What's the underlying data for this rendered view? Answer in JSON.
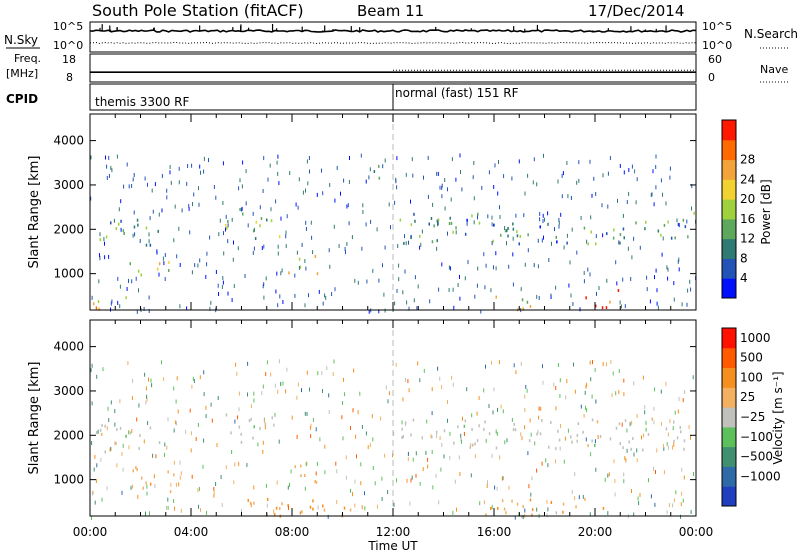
{
  "header": {
    "station": "South Pole Station (fitACF)",
    "beam": "Beam 11",
    "date": "17/Dec/2014"
  },
  "labels": {
    "nsky": "N.Sky",
    "nsearch": "N.Search",
    "freq_line1": "Freq.",
    "freq_line2": "[MHz]",
    "nave": "Nave",
    "cpid": "CPID",
    "ylabel": "Slant Range [km]",
    "xlabel": "Time UT",
    "power_unit": "Power [dB]",
    "velocity_unit": "Velocity [m s⁻¹]"
  },
  "noise_axis": {
    "left": [
      "10^5",
      "10^0"
    ],
    "right": [
      "10^5",
      "10^0"
    ]
  },
  "freq_axis": {
    "left": [
      "18",
      "8"
    ],
    "right": [
      "60",
      "0"
    ]
  },
  "cpid_modes": [
    {
      "label": "themis 3300 RF",
      "start_hour": 0
    },
    {
      "label": "normal (fast) 151 RF",
      "start_hour": 12
    }
  ],
  "chart_data": [
    {
      "type": "line",
      "panel": "noise",
      "series": [
        {
          "name": "N.Sky",
          "style": "solid",
          "level": 0.7
        },
        {
          "name": "N.Search",
          "style": "dotted",
          "level": 0.3
        }
      ],
      "xlim": [
        0,
        24
      ]
    },
    {
      "type": "line",
      "panel": "frequency",
      "series": [
        {
          "name": "Freq.",
          "style": "solid",
          "value_mhz": 11.5
        },
        {
          "name": "Nave",
          "style": "dotted"
        }
      ],
      "ylim": [
        8,
        18
      ],
      "xlim": [
        0,
        24
      ]
    },
    {
      "type": "heatmap",
      "panel": "power",
      "ylabel": "Slant Range [km]",
      "xlabel": "Time UT",
      "xlim": [
        0,
        24
      ],
      "ylim": [
        180,
        4600
      ],
      "x_ticks": [
        "00:00",
        "04:00",
        "08:00",
        "12:00",
        "16:00",
        "20:00",
        "00:00"
      ],
      "y_ticks": [
        1000,
        2000,
        3000,
        4000
      ],
      "colorbar": {
        "label": "Power [dB]",
        "ticks": [
          4,
          8,
          12,
          16,
          20,
          24,
          28
        ],
        "colors": [
          "#0010ff",
          "#2453b8",
          "#2f7a72",
          "#5ea85e",
          "#9fd13f",
          "#f2d230",
          "#f2a33a",
          "#ff6a00",
          "#ff1800"
        ]
      },
      "echo_regions": [
        {
          "t0": 0.1,
          "t1": 2.8,
          "r0": 1650,
          "r1": 2300,
          "value": 12
        },
        {
          "t0": 1.5,
          "t1": 3.3,
          "r0": 900,
          "r1": 1400,
          "value": 16
        },
        {
          "t0": 5.2,
          "t1": 7.5,
          "r0": 1800,
          "r1": 2500,
          "value": 14
        },
        {
          "t0": 7.8,
          "t1": 9.0,
          "r0": 1000,
          "r1": 1500,
          "value": 18
        },
        {
          "t0": 0.1,
          "t1": 1.5,
          "r0": 200,
          "r1": 600,
          "value": 20
        },
        {
          "t0": 12.2,
          "t1": 24.0,
          "r0": 1700,
          "r1": 2400,
          "value": 10
        },
        {
          "t0": 19.5,
          "t1": 21.0,
          "r0": 200,
          "r1": 700,
          "value": 28
        },
        {
          "t0": 15.5,
          "t1": 17.5,
          "r0": 200,
          "r1": 600,
          "value": 18
        },
        {
          "t0": 11.0,
          "t1": 11.5,
          "r0": 3000,
          "r1": 3600,
          "value": 8
        }
      ]
    },
    {
      "type": "heatmap",
      "panel": "velocity",
      "ylabel": "Slant Range [km]",
      "xlabel": "Time UT",
      "xlim": [
        0,
        24
      ],
      "ylim": [
        180,
        4600
      ],
      "x_ticks": [
        "00:00",
        "04:00",
        "08:00",
        "12:00",
        "16:00",
        "20:00",
        "00:00"
      ],
      "y_ticks": [
        1000,
        2000,
        3000,
        4000
      ],
      "colorbar": {
        "label": "Velocity [m s⁻¹]",
        "ticks": [
          "1000",
          "500",
          "100",
          "25",
          "−25",
          "−100",
          "−500",
          "−1000"
        ],
        "colors": [
          "#1f3fbf",
          "#2f6aa8",
          "#3f8f70",
          "#5cc05c",
          "#c0c0bc",
          "#f2b060",
          "#f59020",
          "#ff5a00",
          "#ff1000"
        ]
      },
      "echo_regions": [
        {
          "t0": 0.1,
          "t1": 2.8,
          "r0": 1650,
          "r1": 2300,
          "value": 0
        },
        {
          "t0": 5.2,
          "t1": 7.5,
          "r0": 1800,
          "r1": 2500,
          "value": 0
        },
        {
          "t0": 1.5,
          "t1": 3.3,
          "r0": 700,
          "r1": 1400,
          "value": -300
        },
        {
          "t0": 7.8,
          "t1": 9.0,
          "r0": 900,
          "r1": 1500,
          "value": -300
        },
        {
          "t0": 6.0,
          "t1": 11.0,
          "r0": 200,
          "r1": 700,
          "value": -400
        },
        {
          "t0": 12.2,
          "t1": 24.0,
          "r0": 1700,
          "r1": 2400,
          "value": 0
        },
        {
          "t0": 15.5,
          "t1": 21.0,
          "r0": 200,
          "r1": 600,
          "value": -400
        },
        {
          "t0": 16.5,
          "t1": 18.5,
          "r0": 180,
          "r1": 350,
          "value": 60
        }
      ]
    }
  ]
}
